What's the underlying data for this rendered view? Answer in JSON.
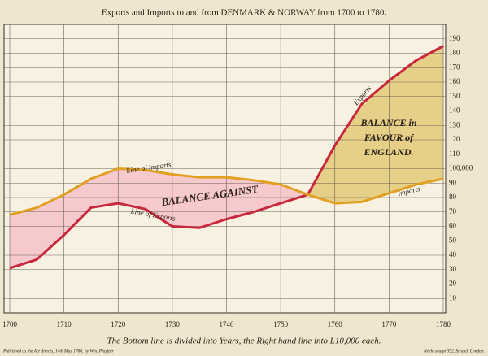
{
  "chart_data": {
    "type": "line",
    "title": "Exports and Imports to and from DENMARK & NORWAY from 1700 to 1780.",
    "caption": "The Bottom line is divided into Years, the Right hand line into L10,000 each.",
    "publisher": "Published as the Act directs, 14th May 1786, by Wm. Playfair",
    "engraver": "Neele sculpt 352, Strand, London.",
    "annotations": [
      "Line of Imports",
      "Line of Exports",
      "BALANCE AGAINST",
      "BALANCE in FAVOUR of ENGLAND.",
      "Exports",
      "Imports"
    ],
    "x": [
      1700,
      1705,
      1710,
      1715,
      1720,
      1725,
      1730,
      1735,
      1740,
      1745,
      1750,
      1755,
      1760,
      1765,
      1770,
      1775,
      1780
    ],
    "series": [
      {
        "name": "Exports",
        "color": "#c8283c",
        "values": [
          31,
          37,
          54,
          73,
          76,
          72,
          60,
          59,
          65,
          70,
          76,
          82,
          116,
          145,
          161,
          175,
          185
        ]
      },
      {
        "name": "Imports",
        "color": "#e2a022",
        "values": [
          68,
          73,
          82,
          93,
          100,
          99,
          96,
          94,
          94,
          92,
          89,
          82,
          76,
          77,
          83,
          89,
          93
        ]
      }
    ],
    "balance_colors": {
      "against": "#f6c9cc",
      "favour": "#e6cf86"
    },
    "xlim": [
      1700,
      1780
    ],
    "xticks": [
      1700,
      1710,
      1720,
      1730,
      1740,
      1750,
      1760,
      1770,
      1780
    ],
    "ylim": [
      0,
      200
    ],
    "yticks": [
      10,
      20,
      30,
      40,
      50,
      60,
      70,
      80,
      90,
      {
        "value": 100,
        "label": "100,000"
      },
      110,
      120,
      130,
      140,
      150,
      160,
      170,
      180,
      190
    ],
    "grid": true
  }
}
